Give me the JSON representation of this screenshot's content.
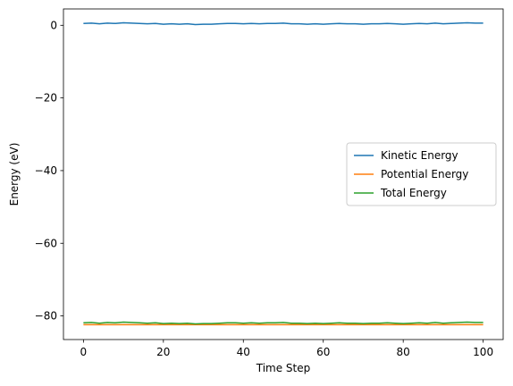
{
  "chart_data": {
    "type": "line",
    "title": "",
    "xlabel": "Time Step",
    "ylabel": "Energy (eV)",
    "xlim": [
      -5,
      105
    ],
    "ylim": [
      -86.5,
      4.5
    ],
    "xticks": [
      0,
      20,
      40,
      60,
      80,
      100
    ],
    "yticks": [
      0,
      -20,
      -40,
      -60,
      -80
    ],
    "xtick_labels": [
      "0",
      "20",
      "40",
      "60",
      "80",
      "100"
    ],
    "ytick_labels": [
      "0",
      "−20",
      "−40",
      "−60",
      "−80"
    ],
    "grid": false,
    "legend_position": "center-right",
    "x": [
      0,
      2,
      4,
      6,
      8,
      10,
      12,
      14,
      16,
      18,
      20,
      22,
      24,
      26,
      28,
      30,
      32,
      34,
      36,
      38,
      40,
      42,
      44,
      46,
      48,
      50,
      52,
      54,
      56,
      58,
      60,
      62,
      64,
      66,
      68,
      70,
      72,
      74,
      76,
      78,
      80,
      82,
      84,
      86,
      88,
      90,
      92,
      94,
      96,
      98,
      100
    ],
    "series": [
      {
        "name": "Kinetic Energy",
        "color": "#1f77b4",
        "values": [
          0.5,
          0.6,
          0.4,
          0.6,
          0.5,
          0.7,
          0.6,
          0.5,
          0.4,
          0.5,
          0.3,
          0.4,
          0.3,
          0.4,
          0.2,
          0.3,
          0.3,
          0.4,
          0.5,
          0.5,
          0.4,
          0.5,
          0.4,
          0.5,
          0.5,
          0.6,
          0.4,
          0.4,
          0.3,
          0.4,
          0.3,
          0.4,
          0.5,
          0.4,
          0.4,
          0.3,
          0.4,
          0.4,
          0.5,
          0.4,
          0.3,
          0.4,
          0.5,
          0.4,
          0.6,
          0.4,
          0.5,
          0.6,
          0.7,
          0.6,
          0.6
        ]
      },
      {
        "name": "Potential Energy",
        "color": "#ff7f0e",
        "values": [
          -82.4,
          -82.4,
          -82.4,
          -82.4,
          -82.4,
          -82.4,
          -82.4,
          -82.4,
          -82.4,
          -82.4,
          -82.4,
          -82.4,
          -82.4,
          -82.4,
          -82.4,
          -82.4,
          -82.4,
          -82.4,
          -82.4,
          -82.4,
          -82.4,
          -82.4,
          -82.4,
          -82.4,
          -82.4,
          -82.4,
          -82.4,
          -82.4,
          -82.4,
          -82.4,
          -82.4,
          -82.4,
          -82.4,
          -82.4,
          -82.4,
          -82.4,
          -82.4,
          -82.4,
          -82.4,
          -82.4,
          -82.4,
          -82.4,
          -82.4,
          -82.4,
          -82.4,
          -82.4,
          -82.4,
          -82.4,
          -82.4,
          -82.4,
          -82.4
        ]
      },
      {
        "name": "Total Energy",
        "color": "#2ca02c",
        "values": [
          -81.9,
          -81.8,
          -82.0,
          -81.8,
          -81.9,
          -81.7,
          -81.8,
          -81.9,
          -82.0,
          -81.9,
          -82.1,
          -82.0,
          -82.1,
          -82.0,
          -82.2,
          -82.1,
          -82.1,
          -82.0,
          -81.9,
          -81.9,
          -82.0,
          -81.9,
          -82.0,
          -81.9,
          -81.9,
          -81.8,
          -82.0,
          -82.0,
          -82.1,
          -82.0,
          -82.1,
          -82.0,
          -81.9,
          -82.0,
          -82.0,
          -82.1,
          -82.0,
          -82.0,
          -81.9,
          -82.0,
          -82.1,
          -82.0,
          -81.9,
          -82.0,
          -81.8,
          -82.0,
          -81.9,
          -81.8,
          -81.7,
          -81.8,
          -81.8
        ]
      }
    ]
  }
}
